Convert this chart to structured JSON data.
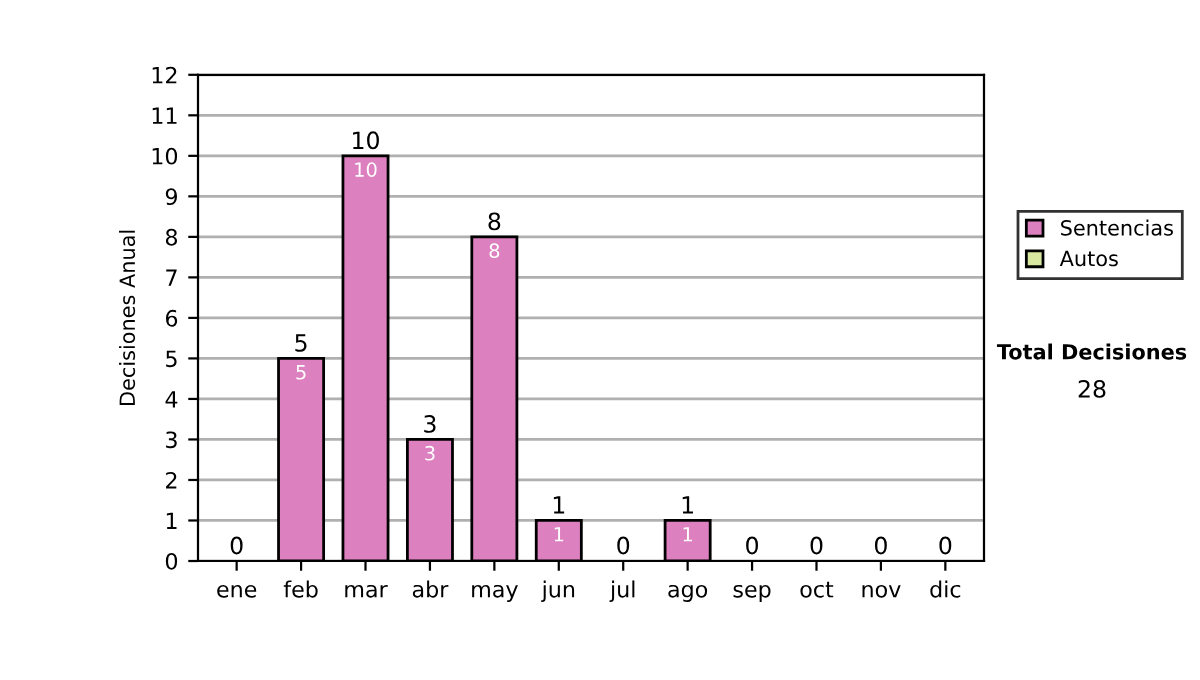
{
  "chart_data": {
    "type": "bar",
    "ylabel": "Decisiones Anual",
    "categories": [
      "ene",
      "feb",
      "mar",
      "abr",
      "may",
      "jun",
      "jul",
      "ago",
      "sep",
      "oct",
      "nov",
      "dic"
    ],
    "series": [
      {
        "name": "Sentencias",
        "color": "#dd80c0",
        "values": [
          0,
          5,
          10,
          3,
          8,
          1,
          0,
          1,
          0,
          0,
          0,
          0
        ],
        "value_labels": [
          null,
          "5",
          "10",
          "3",
          "8",
          "1",
          null,
          "1",
          null,
          null,
          null,
          null
        ]
      },
      {
        "name": "Autos",
        "color": "#d8e8a0",
        "values": [
          0,
          0,
          0,
          0,
          0,
          0,
          0,
          0,
          0,
          0,
          0,
          0
        ]
      }
    ],
    "stacked": true,
    "totals": [
      "0",
      "5",
      "10",
      "3",
      "8",
      "1",
      "0",
      "1",
      "0",
      "0",
      "0",
      "0"
    ],
    "ylim": [
      0,
      12
    ],
    "yticks": [
      0,
      1,
      2,
      3,
      4,
      5,
      6,
      7,
      8,
      9,
      10,
      11,
      12
    ],
    "grid": "y",
    "legend": "right",
    "annotations": [
      "Total Decisiones",
      "28"
    ]
  }
}
